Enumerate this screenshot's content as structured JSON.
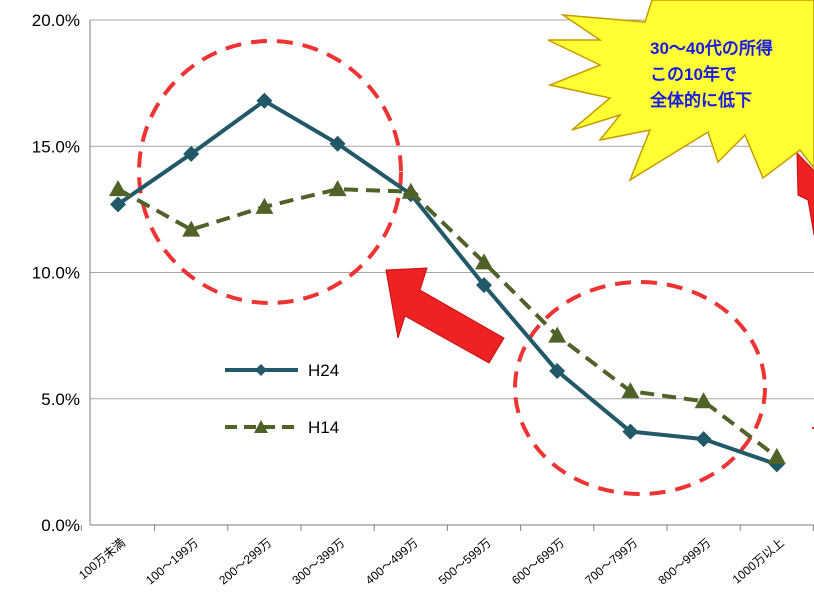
{
  "chart_data": {
    "type": "line",
    "categories": [
      "100万未満",
      "100～199万",
      "200～299万",
      "300～399万",
      "400～499万",
      "500～599万",
      "600～699万",
      "700～799万",
      "800～999万",
      "1000万以上"
    ],
    "series": [
      {
        "name": "H24",
        "values": [
          12.7,
          14.7,
          16.8,
          15.1,
          13.1,
          9.5,
          6.1,
          3.7,
          3.4,
          2.4
        ],
        "color": "#215968",
        "marker": "diamond",
        "dash": "solid"
      },
      {
        "name": "H14",
        "values": [
          13.3,
          11.7,
          12.6,
          13.3,
          13.2,
          10.4,
          7.5,
          5.3,
          4.9,
          2.7
        ],
        "color": "#4f6228",
        "marker": "triangle",
        "dash": "dashed"
      }
    ],
    "y_tick_labels": [
      "0.0%",
      "5.0%",
      "10.0%",
      "15.0%",
      "20.0%"
    ],
    "ylim": [
      0,
      20
    ],
    "grid": true,
    "legend_position": "center-left",
    "annotation": {
      "lines": [
        "30～40代の所得",
        "この10年で",
        "全体的に低下"
      ],
      "background": "#ffff33",
      "text_color": "#1a1ae6"
    }
  },
  "colors": {
    "gridline": "#a6a6a6",
    "highlight_circle": "#ee3333",
    "arrow_fill": "#ee2222"
  }
}
